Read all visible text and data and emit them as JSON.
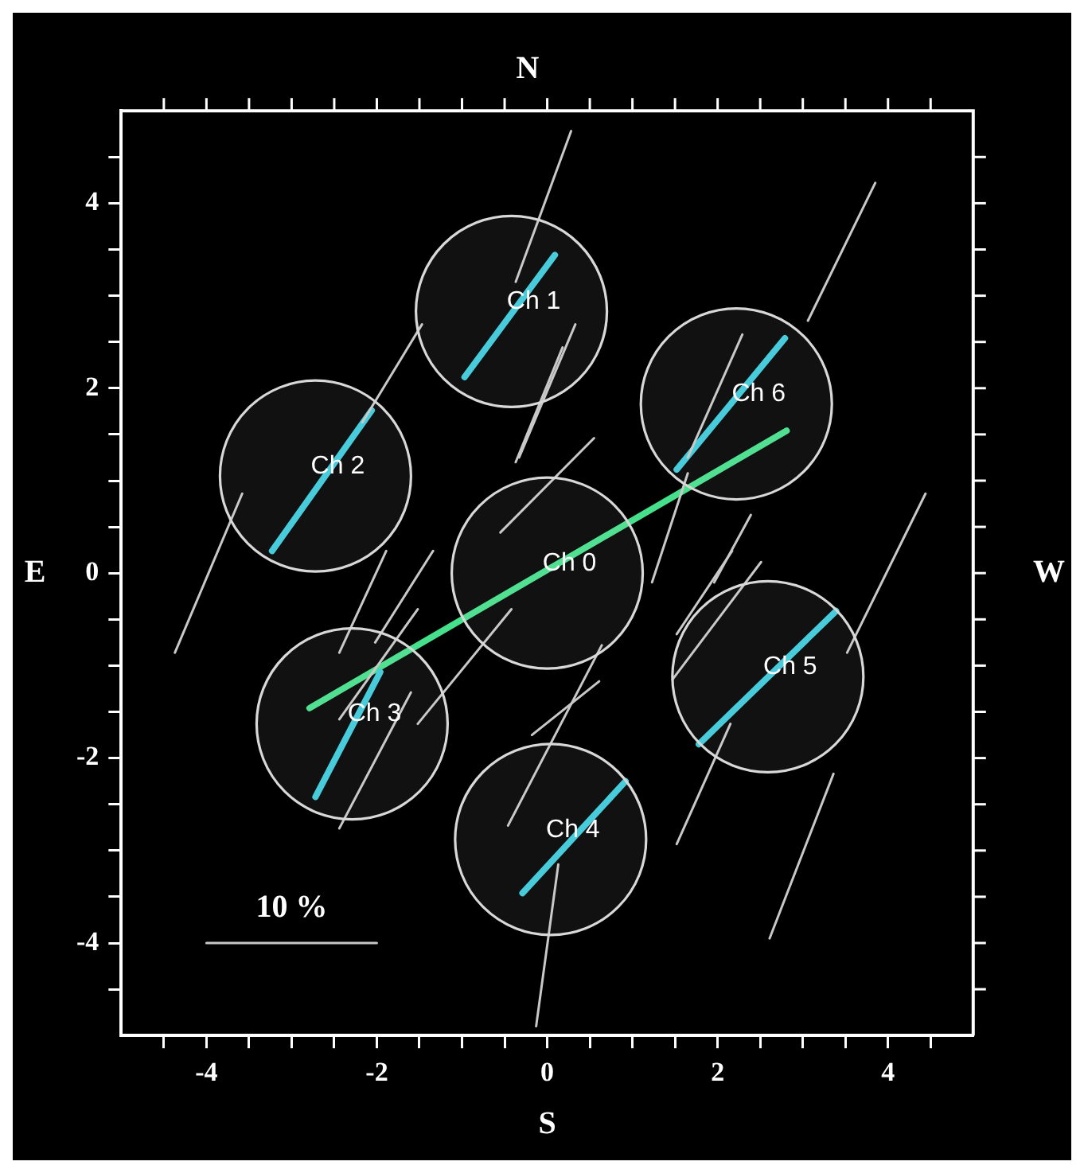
{
  "chart_data": {
    "type": "line",
    "title": "N",
    "xlabel": "S",
    "ylabel": "E",
    "y2label": "W",
    "xlim": [
      -5,
      5
    ],
    "ylim": [
      -5,
      5
    ],
    "xticks": [
      {
        "value": -4.5,
        "label": null
      },
      -4,
      {
        "value": -3.5,
        "label": null
      },
      {
        "value": -3,
        "label": null
      },
      {
        "value": -2.5,
        "label": null
      },
      -2,
      {
        "value": -1.5,
        "label": null
      },
      {
        "value": -1,
        "label": null
      },
      {
        "value": -0.5,
        "label": null
      },
      0,
      {
        "value": 0.5,
        "label": null
      },
      {
        "value": 1,
        "label": null
      },
      {
        "value": 1.5,
        "label": null
      },
      2,
      {
        "value": 2.5,
        "label": null
      },
      {
        "value": 3,
        "label": null
      },
      {
        "value": 3.5,
        "label": null
      },
      4,
      {
        "value": 4.5,
        "label": null
      }
    ],
    "yticks": [
      {
        "value": -4.5,
        "label": null
      },
      -4,
      {
        "value": -3.5,
        "label": null
      },
      {
        "value": -3,
        "label": null
      },
      {
        "value": -2.5,
        "label": null
      },
      -2,
      {
        "value": -1.5,
        "label": null
      },
      {
        "value": -1,
        "label": null
      },
      {
        "value": -0.5,
        "label": null
      },
      0,
      {
        "value": 0.5,
        "label": null
      },
      {
        "value": 1,
        "label": null
      },
      {
        "value": 1.5,
        "label": null
      },
      2,
      {
        "value": 2.5,
        "label": null
      },
      {
        "value": 3,
        "label": null
      },
      {
        "value": 3.5,
        "label": null
      },
      4,
      {
        "value": 4.5,
        "label": null
      }
    ],
    "grid": false,
    "legend": false,
    "marker": "none",
    "line_style": "solid",
    "series": [
      {
        "color": "#c8c8c8",
        "x": [
          0.28,
          -0.37
        ],
        "values": [
          4.78,
          3.15
        ]
      },
      {
        "color": "#c8c8c8",
        "x": [
          0.33,
          -0.33
        ],
        "values": [
          2.69,
          1.25
        ]
      },
      {
        "color": "#c8c8c8",
        "x": [
          0.18,
          -0.37
        ],
        "values": [
          2.44,
          1.2
        ]
      },
      {
        "color": "#c8c8c8",
        "x": [
          0.55,
          -0.55
        ],
        "values": [
          1.46,
          0.44
        ]
      },
      {
        "color": "#c8c8c8",
        "x": [
          -1.47,
          -2.17
        ],
        "values": [
          2.69,
          1.63
        ]
      },
      {
        "color": "#c8c8c8",
        "x": [
          -3.58,
          -4.37
        ],
        "values": [
          0.86,
          -0.86
        ]
      },
      {
        "color": "#c8c8c8",
        "x": [
          -1.89,
          -2.44
        ],
        "values": [
          0.24,
          -0.86
        ]
      },
      {
        "color": "#c8c8c8",
        "x": [
          -1.34,
          -2.02
        ],
        "values": [
          0.24,
          -0.75
        ]
      },
      {
        "color": "#c8c8c8",
        "x": [
          -1.52,
          -2.44
        ],
        "values": [
          -0.39,
          -1.58
        ]
      },
      {
        "color": "#c8c8c8",
        "x": [
          -0.42,
          -1.52
        ],
        "values": [
          -0.39,
          -1.63
        ]
      },
      {
        "color": "#c8c8c8",
        "x": [
          -1.6,
          -2.44
        ],
        "values": [
          -1.29,
          -2.76
        ]
      },
      {
        "color": "#c8c8c8",
        "x": [
          3.85,
          3.06
        ],
        "values": [
          4.22,
          2.73
        ]
      },
      {
        "color": "#c8c8c8",
        "x": [
          2.29,
          1.65
        ],
        "values": [
          2.58,
          1.25
        ]
      },
      {
        "color": "#c8c8c8",
        "x": [
          1.65,
          1.23
        ],
        "values": [
          1.08,
          -0.1
        ]
      },
      {
        "color": "#c8c8c8",
        "x": [
          2.39,
          1.96
        ],
        "values": [
          0.63,
          -0.1
        ]
      },
      {
        "color": "#c8c8c8",
        "x": [
          4.44,
          3.52
        ],
        "values": [
          0.86,
          -0.86
        ]
      },
      {
        "color": "#c8c8c8",
        "x": [
          2.51,
          1.47
        ],
        "values": [
          0.12,
          -1.15
        ]
      },
      {
        "color": "#c8c8c8",
        "x": [
          2.17,
          1.52
        ],
        "values": [
          0.24,
          -0.66
        ]
      },
      {
        "color": "#c8c8c8",
        "x": [
          3.36,
          2.61
        ],
        "values": [
          -2.17,
          -3.95
        ]
      },
      {
        "color": "#c8c8c8",
        "x": [
          0.61,
          -0.18
        ],
        "values": [
          -1.17,
          -1.75
        ]
      },
      {
        "color": "#c8c8c8",
        "x": [
          2.15,
          1.52
        ],
        "values": [
          -1.63,
          -2.93
        ]
      },
      {
        "color": "#c8c8c8",
        "x": [
          0.13,
          -0.13
        ],
        "values": [
          -3.15,
          -4.9
        ]
      },
      {
        "color": "#c8c8c8",
        "x": [
          0.64,
          -0.46
        ],
        "values": [
          -0.78,
          -2.73
        ]
      },
      {
        "color": "#c8c8c8",
        "x": [
          -4,
          -2
        ],
        "values": [
          -4,
          -4
        ]
      },
      {
        "color": "#3ccbdc",
        "x": [
          -0.97,
          0.09
        ],
        "values": [
          2.12,
          3.44
        ]
      },
      {
        "color": "#3ccbdc",
        "x": [
          -3.23,
          -2.06
        ],
        "values": [
          0.24,
          1.76
        ]
      },
      {
        "color": "#3ccbdc",
        "x": [
          1.52,
          2.79
        ],
        "values": [
          1.12,
          2.54
        ]
      },
      {
        "color": "#3ccbdc",
        "x": [
          1.78,
          3.39
        ],
        "values": [
          -1.85,
          -0.41
        ]
      },
      {
        "color": "#3ccbdc",
        "x": [
          -0.29,
          0.92
        ],
        "values": [
          -3.46,
          -2.25
        ]
      },
      {
        "color": "#3ccbdc",
        "x": [
          -2.72,
          -1.96
        ],
        "values": [
          -2.42,
          -1.07
        ]
      },
      {
        "color": "#46e08c",
        "x": [
          -2.79,
          2.81
        ],
        "values": [
          -1.46,
          1.54
        ]
      },
      {
        "type": "scatter",
        "marker": "circle",
        "name": "Ch 0",
        "color": "#d8d8d8",
        "x": [
          0
        ],
        "values": [
          0
        ]
      },
      {
        "type": "scatter",
        "marker": "circle",
        "name": "Ch 1",
        "color": "#d8d8d8",
        "x": [
          -0.42
        ],
        "values": [
          2.83
        ]
      },
      {
        "type": "scatter",
        "marker": "circle",
        "name": "Ch 2",
        "color": "#d8d8d8",
        "x": [
          -2.72
        ],
        "values": [
          1.05
        ]
      },
      {
        "type": "scatter",
        "marker": "circle",
        "name": "Ch 3",
        "color": "#d8d8d8",
        "x": [
          -2.29
        ],
        "values": [
          -1.63
        ]
      },
      {
        "type": "scatter",
        "marker": "circle",
        "name": "Ch 4",
        "color": "#d8d8d8",
        "x": [
          0.04
        ],
        "values": [
          -2.88
        ]
      },
      {
        "type": "scatter",
        "marker": "circle",
        "name": "Ch 5",
        "color": "#d8d8d8",
        "x": [
          2.59
        ],
        "values": [
          -1.12
        ]
      },
      {
        "type": "scatter",
        "marker": "circle",
        "name": "Ch 6",
        "color": "#d8d8d8",
        "x": [
          2.22
        ],
        "values": [
          1.83
        ]
      }
    ],
    "annotations": [
      "10 %"
    ]
  }
}
